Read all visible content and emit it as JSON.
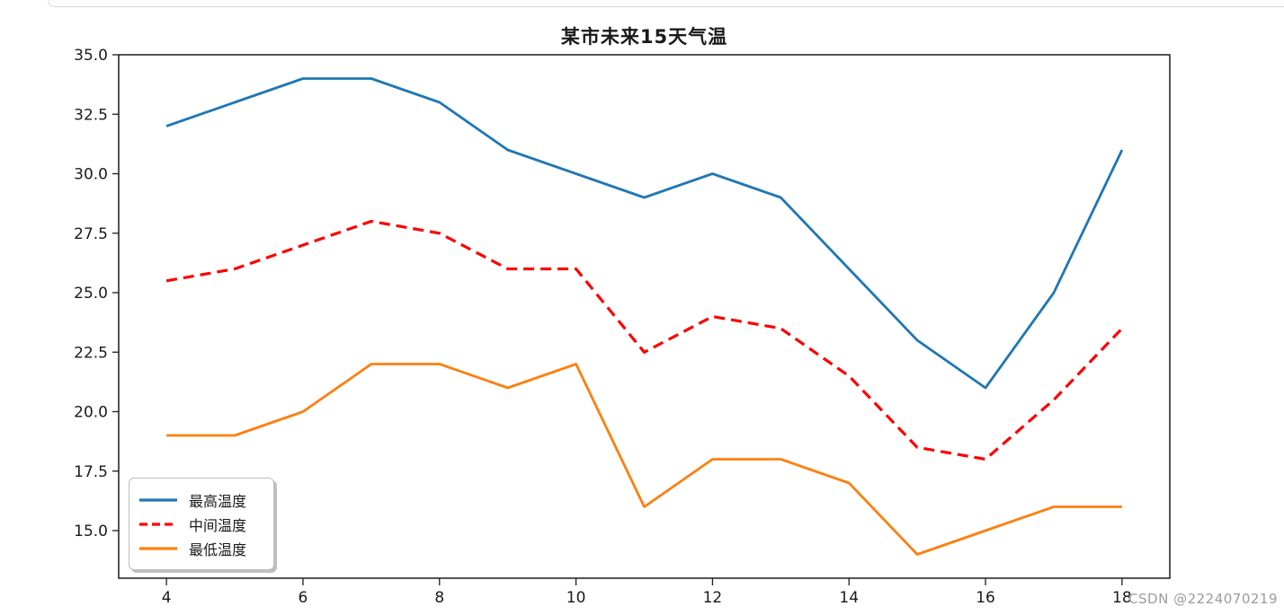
{
  "page": {
    "background": "#ffffff",
    "watermark": "CSDN @2224070219"
  },
  "chart_data": {
    "type": "line",
    "title": "某市未来15天气温",
    "xlabel": "",
    "ylabel": "",
    "x": [
      4,
      5,
      6,
      7,
      8,
      9,
      10,
      11,
      12,
      13,
      14,
      15,
      16,
      17,
      18
    ],
    "xlim": [
      3.3,
      18.7
    ],
    "ylim": [
      13,
      35
    ],
    "x_ticks": [
      4,
      6,
      8,
      10,
      12,
      14,
      16,
      18
    ],
    "x_tick_labels": [
      "4",
      "6",
      "8",
      "10",
      "12",
      "14",
      "16",
      "18"
    ],
    "y_ticks": [
      15.0,
      17.5,
      20.0,
      22.5,
      25.0,
      27.5,
      30.0,
      32.5,
      35.0
    ],
    "y_tick_labels": [
      "15.0",
      "17.5",
      "20.0",
      "22.5",
      "25.0",
      "27.5",
      "30.0",
      "32.5",
      "35.0"
    ],
    "grid": false,
    "legend": {
      "position": "lower-left",
      "shadow": true
    },
    "series": [
      {
        "name": "最高温度",
        "color": "#1f77b4",
        "line_style": "solid",
        "values": [
          32,
          33,
          34,
          34,
          33,
          31,
          30,
          29,
          30,
          29,
          26,
          23,
          21,
          25,
          31
        ]
      },
      {
        "name": "中间温度",
        "color": "#ff0000",
        "line_style": "dashed",
        "values": [
          25.5,
          26,
          27,
          28,
          27.5,
          26,
          26,
          22.5,
          24,
          23.5,
          21.5,
          18.5,
          18,
          20.5,
          23.5
        ]
      },
      {
        "name": "最低温度",
        "color": "#ff7f0e",
        "line_style": "solid",
        "values": [
          19,
          19,
          20,
          22,
          22,
          21,
          22,
          16,
          18,
          18,
          17,
          14,
          15,
          16,
          16
        ]
      }
    ]
  }
}
